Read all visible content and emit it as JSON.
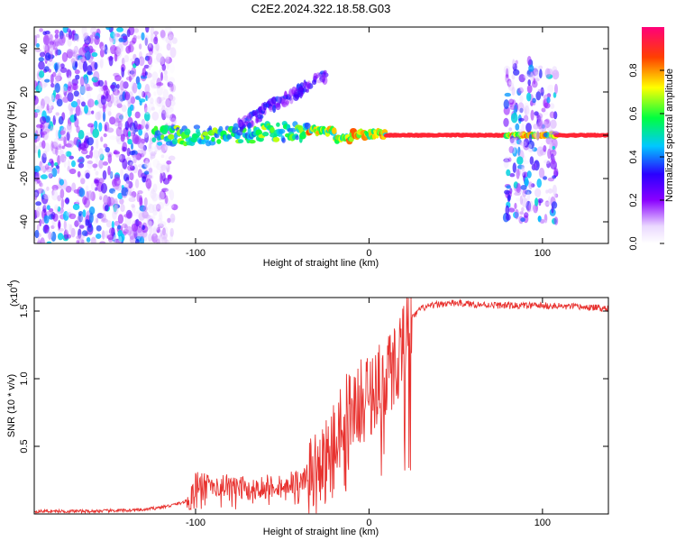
{
  "title": "C2E2.2024.322.18.58.G03",
  "chart_data": [
    {
      "type": "heatmap",
      "xlabel": "Height of straight line (km)",
      "ylabel": "Frequency (Hz)",
      "xlim": [
        -193,
        138
      ],
      "ylim": [
        -50,
        50
      ],
      "x_ticks": [
        -100,
        0,
        100
      ],
      "y_ticks": [
        -40,
        -20,
        0,
        20,
        40
      ],
      "colorbar": {
        "label": "Normalized spectral amplitude",
        "range": [
          0,
          1
        ],
        "ticks": [
          "0.0",
          "0.2",
          "0.4",
          "0.6",
          "0.8"
        ]
      },
      "features": [
        {
          "name": "noise_band_left",
          "x_range": [
            -193,
            -112
          ],
          "freq_range": [
            -50,
            50
          ],
          "amplitude": 0.15
        },
        {
          "name": "signal_track",
          "x_range": [
            -124,
            138
          ],
          "freq_center": 0,
          "amplitude": 0.9
        },
        {
          "name": "secondary_track",
          "x_range": [
            -75,
            -25
          ],
          "freq_start": 4,
          "freq_end": 28,
          "amplitude": 0.25
        },
        {
          "name": "noise_band_right",
          "x_range": [
            79,
            108
          ],
          "freq_range": [
            -40,
            35
          ],
          "amplitude": 0.2
        }
      ]
    },
    {
      "type": "line",
      "xlabel": "Height of straight line (km)",
      "ylabel": "SNR (10 * v/v)",
      "y_scale_label": "(x10",
      "y_scale_exp": "4",
      "xlim": [
        -193,
        138
      ],
      "ylim": [
        0,
        1.6
      ],
      "x_ticks": [
        -100,
        0,
        100
      ],
      "y_ticks": [
        "0.5",
        "1.0",
        "1.5"
      ],
      "color": "#e8322f",
      "x": [
        -193,
        -160,
        -130,
        -115,
        -103,
        -100,
        -90,
        -80,
        -70,
        -60,
        -50,
        -40,
        -35,
        -30,
        -25,
        -20,
        -15,
        -10,
        -5,
        0,
        5,
        10,
        15,
        20,
        25,
        30,
        40,
        50,
        60,
        80,
        100,
        120,
        138
      ],
      "y": [
        0.02,
        0.02,
        0.03,
        0.06,
        0.1,
        0.23,
        0.22,
        0.2,
        0.19,
        0.2,
        0.22,
        0.25,
        0.28,
        0.3,
        0.4,
        0.6,
        0.7,
        0.75,
        0.82,
        0.88,
        0.95,
        1.02,
        1.1,
        1.28,
        1.45,
        1.52,
        1.55,
        1.56,
        1.55,
        1.54,
        1.54,
        1.53,
        1.52
      ]
    }
  ]
}
